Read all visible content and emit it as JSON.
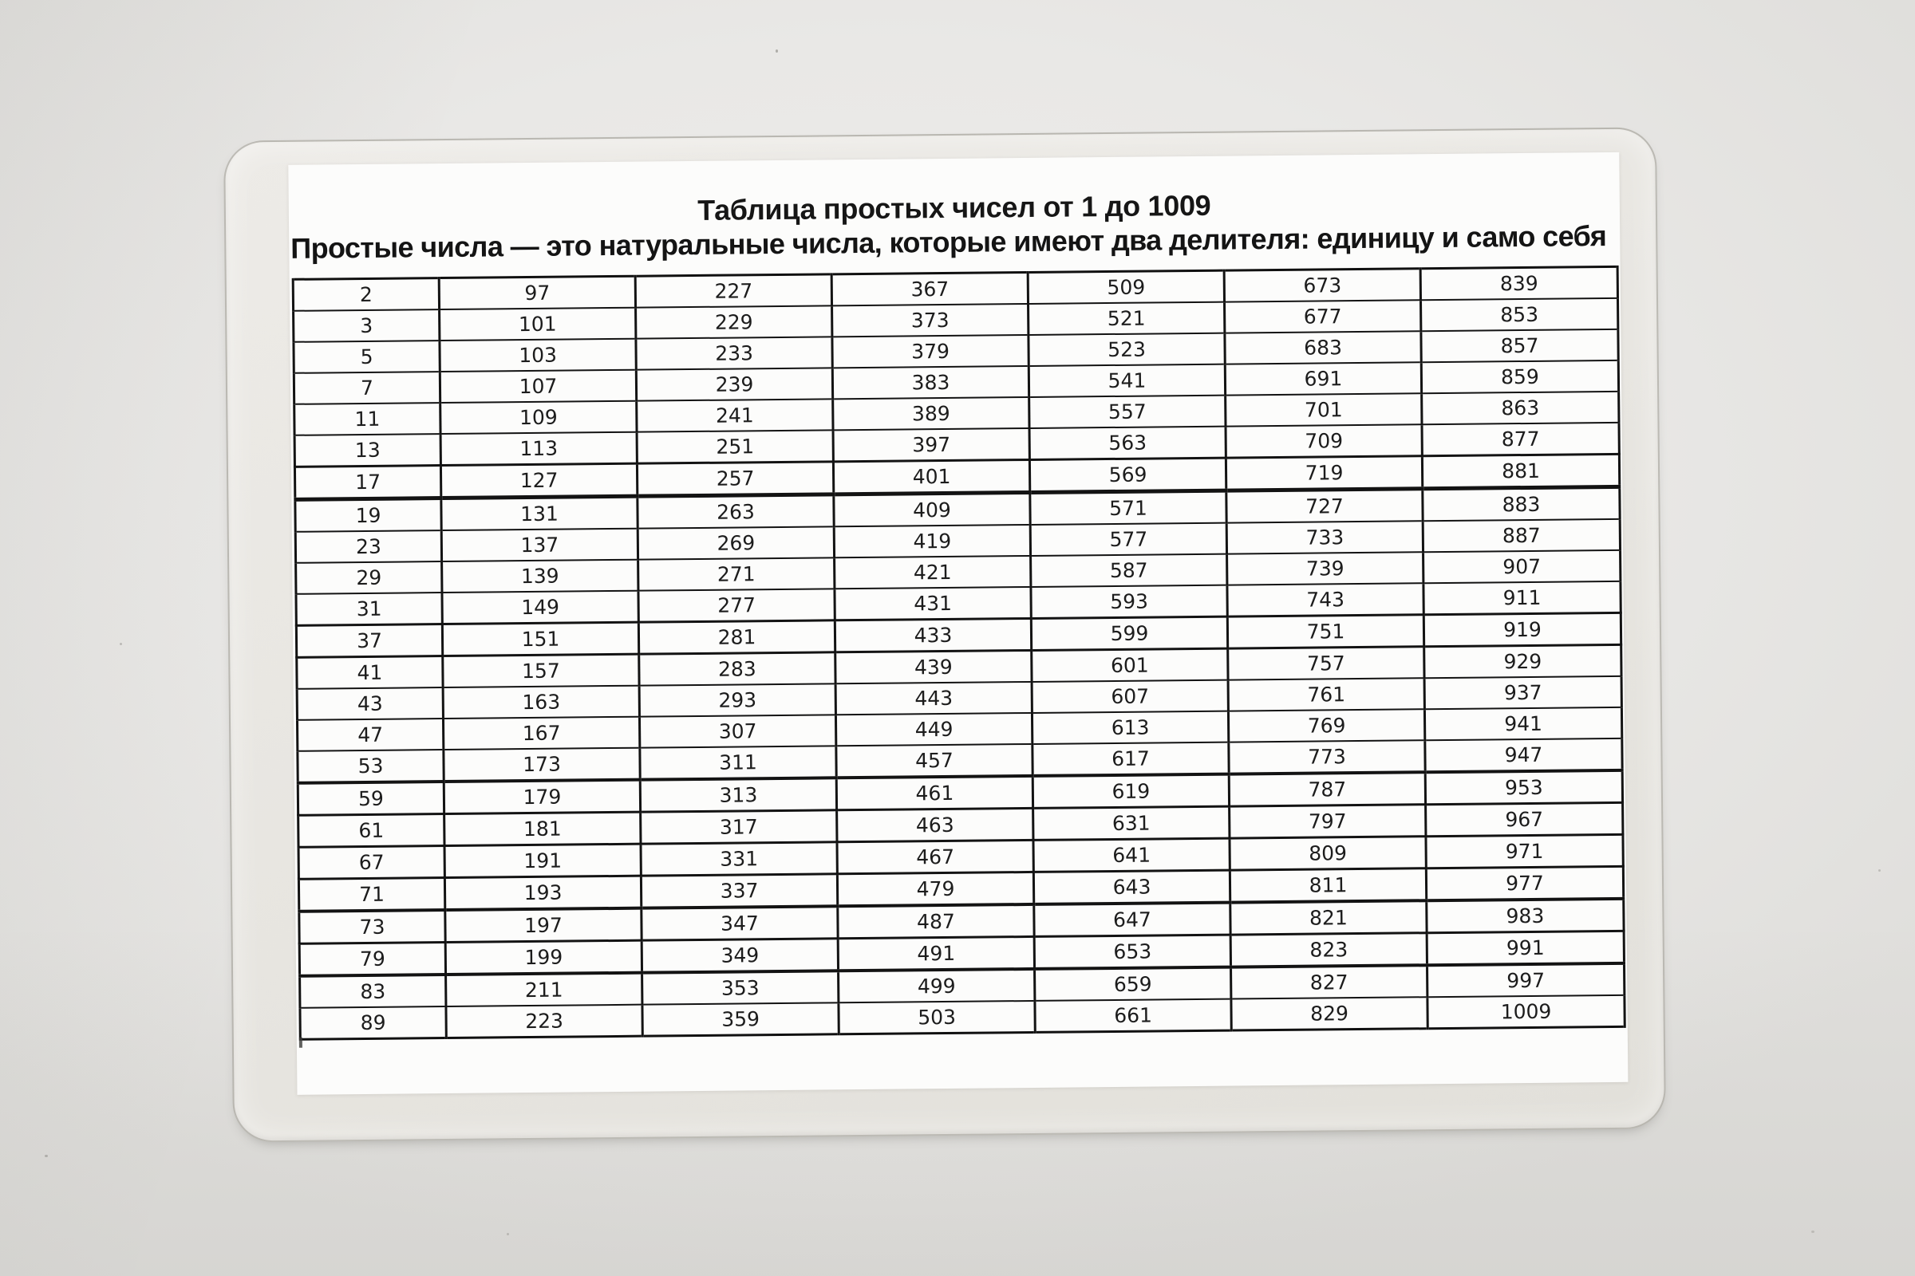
{
  "document": {
    "title": "Таблица простых чисел от 1 до 1009",
    "subtitle": "Простые числа — это натуральные числа, которые имеют два делителя: единицу и само себя"
  },
  "table": {
    "type": "table",
    "rows": 24,
    "columns": [
      [
        2,
        3,
        5,
        7,
        11,
        13,
        17,
        19,
        23,
        29,
        31,
        37,
        41,
        43,
        47,
        53,
        59,
        61,
        67,
        71,
        73,
        79,
        83,
        89
      ],
      [
        97,
        101,
        103,
        107,
        109,
        113,
        127,
        131,
        137,
        139,
        149,
        151,
        157,
        163,
        167,
        173,
        179,
        181,
        191,
        193,
        197,
        199,
        211,
        223
      ],
      [
        227,
        229,
        233,
        239,
        241,
        251,
        257,
        263,
        269,
        271,
        277,
        281,
        283,
        293,
        307,
        311,
        313,
        317,
        331,
        337,
        347,
        349,
        353,
        359
      ],
      [
        367,
        373,
        379,
        383,
        389,
        397,
        401,
        409,
        419,
        421,
        431,
        433,
        439,
        443,
        449,
        457,
        461,
        463,
        467,
        479,
        487,
        491,
        499,
        503
      ],
      [
        509,
        521,
        523,
        541,
        557,
        563,
        569,
        571,
        577,
        587,
        593,
        599,
        601,
        607,
        613,
        617,
        619,
        631,
        641,
        643,
        647,
        653,
        659,
        661
      ],
      [
        673,
        677,
        683,
        691,
        701,
        709,
        719,
        727,
        733,
        739,
        743,
        751,
        757,
        761,
        769,
        773,
        787,
        797,
        809,
        811,
        821,
        823,
        827,
        829
      ],
      [
        839,
        853,
        857,
        859,
        863,
        877,
        881,
        883,
        887,
        907,
        911,
        919,
        929,
        937,
        941,
        947,
        953,
        967,
        971,
        977,
        983,
        991,
        997,
        1009
      ]
    ]
  },
  "colors": {
    "background": "#e9e8e6",
    "lamination": "#e7e5e0",
    "paper": "#fcfcfb",
    "table_border": "#131313",
    "text": "#1c1c1c"
  }
}
